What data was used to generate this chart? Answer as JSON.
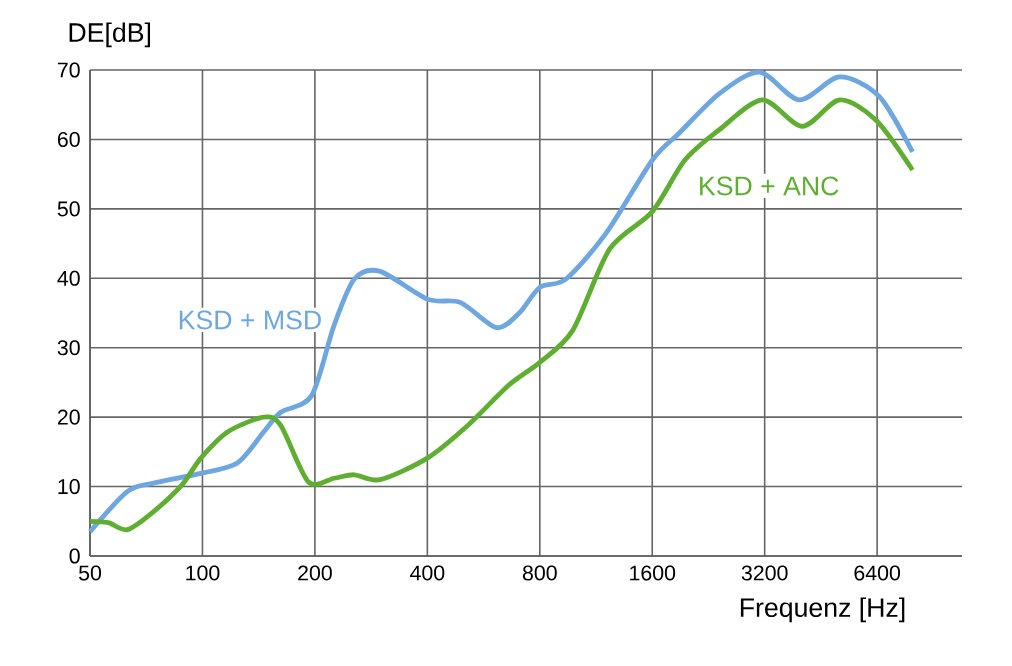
{
  "chart_data": {
    "type": "line",
    "xlabel": "Frequenz [Hz]",
    "ylabel": "DE[dB]",
    "log": "x",
    "xlim": [
      50,
      10800
    ],
    "xticks": [
      50,
      100,
      200,
      400,
      800,
      1600,
      3200,
      6400
    ],
    "ylim": [
      0,
      70
    ],
    "yticks": [
      0,
      10,
      20,
      30,
      40,
      50,
      60,
      70
    ],
    "grid": true,
    "legend": false,
    "series": [
      {
        "name": "KSD + MSD",
        "color": "#6ea6e0",
        "x": [
          50,
          63,
          74,
          99,
          124,
          146,
          162,
          196,
          225,
          255,
          299,
          400,
          491,
          612,
          705,
          800,
          941,
          1204,
          1600,
          1888,
          2420,
          3100,
          3960,
          5077,
          6480,
          7960
        ],
        "values": [
          3.5,
          9.3,
          10.5,
          11.9,
          13.4,
          17.9,
          20.7,
          23.1,
          33.2,
          39.9,
          41,
          37,
          36.5,
          32.9,
          35,
          38.7,
          39.9,
          46.5,
          57,
          60.9,
          66.6,
          69.7,
          65.7,
          69,
          66.2,
          58.2
        ]
      },
      {
        "name": "KSD + ANC",
        "color": "#5fae32",
        "x": [
          50,
          56,
          63,
          74,
          88,
          99,
          117,
          146,
          162,
          192,
          225,
          255,
          299,
          400,
          513,
          660,
          800,
          980,
          1230,
          1600,
          1955,
          2420,
          3150,
          4035,
          5077,
          6350,
          7960
        ],
        "values": [
          5,
          4.8,
          3.8,
          6.4,
          10.2,
          14.1,
          17.9,
          20,
          18.8,
          10.7,
          11.2,
          11.7,
          11,
          14.1,
          18.8,
          24.6,
          27.9,
          32.5,
          44.2,
          49.6,
          57,
          61.4,
          65.7,
          61.9,
          65.7,
          62.8,
          55.6
        ]
      }
    ]
  }
}
